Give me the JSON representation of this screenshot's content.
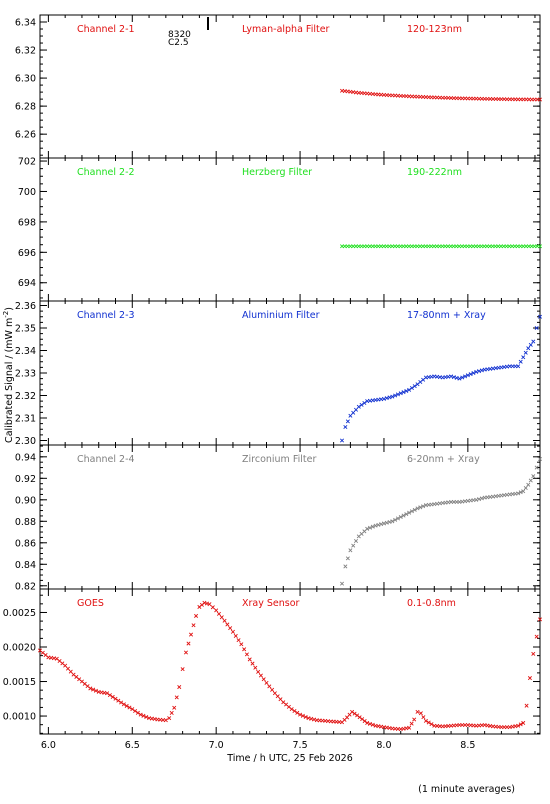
{
  "page": {
    "ylabel": "Calibrated Signal / (mW m",
    "ylabel_sup": "-2",
    "ylabel_end": ")",
    "xlabel": "Time / h UTC, 25 Feb 2026",
    "footnote": "(1 minute averages)",
    "xticks": [
      "6.0",
      "6.5",
      "7.0",
      "7.5",
      "8.0",
      "8.5"
    ],
    "marker": {
      "line1": "8320",
      "line2": "C2.5"
    }
  },
  "chart_data": [
    {
      "type": "scatter",
      "channel": "Channel 2-1",
      "filter": "Lyman-alpha Filter",
      "band": "120-123nm",
      "color": "#e01010",
      "xlim": [
        5.95,
        8.93
      ],
      "ylim": [
        6.243,
        6.345
      ],
      "ytick_values": [
        6.26,
        6.28,
        6.3,
        6.32,
        6.34
      ],
      "yticks": [
        "6.26",
        "6.28",
        "6.30",
        "6.32",
        "6.34"
      ],
      "x": [
        7.75,
        7.85,
        8.0,
        8.15,
        8.3,
        8.45,
        8.6,
        8.75,
        8.93
      ],
      "y": [
        6.291,
        6.2895,
        6.288,
        6.287,
        6.2862,
        6.2856,
        6.2852,
        6.2849,
        6.2847
      ]
    },
    {
      "type": "scatter",
      "channel": "Channel 2-2",
      "filter": "Herzberg Filter",
      "band": "190-222nm",
      "color": "#20e020",
      "xlim": [
        5.95,
        8.93
      ],
      "ylim": [
        692.8,
        702.2
      ],
      "ytick_values": [
        694,
        696,
        698,
        700,
        702
      ],
      "yticks": [
        "694",
        "696",
        "698",
        "700",
        "702"
      ],
      "x": [
        7.75,
        8.93
      ],
      "y": [
        696.4,
        696.4
      ]
    },
    {
      "type": "scatter",
      "channel": "Channel 2-3",
      "filter": "Aluminium Filter",
      "band": "17-80nm + Xray",
      "color": "#1030d0",
      "xlim": [
        5.95,
        8.93
      ],
      "ylim": [
        2.298,
        2.362
      ],
      "ytick_values": [
        2.3,
        2.31,
        2.32,
        2.33,
        2.34,
        2.35,
        2.36
      ],
      "yticks": [
        "2.30",
        "2.31",
        "2.32",
        "2.33",
        "2.34",
        "2.35",
        "2.36"
      ],
      "x": [
        7.75,
        7.77,
        7.8,
        7.85,
        7.9,
        7.95,
        8.0,
        8.05,
        8.1,
        8.15,
        8.2,
        8.25,
        8.3,
        8.35,
        8.4,
        8.45,
        8.5,
        8.55,
        8.6,
        8.65,
        8.7,
        8.75,
        8.8,
        8.83,
        8.86,
        8.89,
        8.91,
        8.93
      ],
      "y": [
        2.3,
        2.306,
        2.311,
        2.315,
        2.3175,
        2.318,
        2.3185,
        2.3195,
        2.321,
        2.3225,
        2.325,
        2.328,
        2.3285,
        2.328,
        2.3285,
        2.3275,
        2.329,
        2.3305,
        2.3315,
        2.332,
        2.3325,
        2.333,
        2.333,
        2.337,
        2.341,
        2.344,
        2.35,
        2.355
      ]
    },
    {
      "type": "scatter",
      "channel": "Channel 2-4",
      "filter": "Zirconium Filter",
      "band": "6-20nm + Xray",
      "color": "#808080",
      "xlim": [
        5.95,
        8.93
      ],
      "ylim": [
        0.817,
        0.951
      ],
      "ytick_values": [
        0.82,
        0.84,
        0.86,
        0.88,
        0.9,
        0.92,
        0.94
      ],
      "yticks": [
        "0.82",
        "0.84",
        "0.86",
        "0.88",
        "0.90",
        "0.92",
        "0.94"
      ],
      "x": [
        7.75,
        7.77,
        7.8,
        7.85,
        7.9,
        7.95,
        8.0,
        8.05,
        8.1,
        8.15,
        8.2,
        8.25,
        8.3,
        8.35,
        8.4,
        8.45,
        8.5,
        8.55,
        8.6,
        8.65,
        8.7,
        8.75,
        8.8,
        8.83,
        8.86,
        8.89,
        8.91,
        8.93
      ],
      "y": [
        0.822,
        0.838,
        0.853,
        0.866,
        0.873,
        0.876,
        0.878,
        0.88,
        0.884,
        0.888,
        0.892,
        0.895,
        0.896,
        0.897,
        0.898,
        0.898,
        0.899,
        0.9,
        0.902,
        0.903,
        0.904,
        0.905,
        0.906,
        0.908,
        0.914,
        0.922,
        0.93,
        0.938
      ]
    },
    {
      "type": "scatter",
      "channel": "GOES",
      "filter": "Xray Sensor",
      "band": "0.1-0.8nm",
      "color": "#e01010",
      "xlim": [
        5.95,
        8.93
      ],
      "ylim": [
        0.00074,
        0.00284
      ],
      "ytick_values": [
        0.001,
        0.0015,
        0.002,
        0.0025
      ],
      "yticks": [
        "0.0010",
        "0.0015",
        "0.0020",
        "0.0025"
      ],
      "x": [
        5.95,
        6.0,
        6.05,
        6.1,
        6.15,
        6.2,
        6.25,
        6.3,
        6.35,
        6.4,
        6.45,
        6.5,
        6.55,
        6.6,
        6.65,
        6.7,
        6.72,
        6.75,
        6.78,
        6.8,
        6.82,
        6.85,
        6.88,
        6.9,
        6.93,
        6.96,
        7.0,
        7.05,
        7.1,
        7.15,
        7.2,
        7.25,
        7.3,
        7.35,
        7.4,
        7.45,
        7.5,
        7.55,
        7.6,
        7.65,
        7.7,
        7.75,
        7.78,
        7.81,
        7.84,
        7.9,
        7.95,
        8.0,
        8.05,
        8.1,
        8.15,
        8.18,
        8.2,
        8.22,
        8.25,
        8.3,
        8.35,
        8.4,
        8.45,
        8.5,
        8.55,
        8.6,
        8.65,
        8.7,
        8.75,
        8.8,
        8.83,
        8.85,
        8.87,
        8.89,
        8.91,
        8.93
      ],
      "y": [
        0.00195,
        0.00185,
        0.00183,
        0.00173,
        0.0016,
        0.0015,
        0.0014,
        0.00135,
        0.00133,
        0.00125,
        0.00117,
        0.0011,
        0.00102,
        0.00097,
        0.00095,
        0.00094,
        0.00097,
        0.00112,
        0.00142,
        0.00168,
        0.00192,
        0.00218,
        0.00245,
        0.00258,
        0.00264,
        0.00262,
        0.00253,
        0.00238,
        0.00222,
        0.00204,
        0.00182,
        0.00164,
        0.00148,
        0.00133,
        0.0012,
        0.0011,
        0.00102,
        0.00097,
        0.00094,
        0.00093,
        0.00092,
        0.00091,
        0.00098,
        0.00106,
        0.00101,
        0.0009,
        0.00086,
        0.00084,
        0.00082,
        0.00081,
        0.00083,
        0.00095,
        0.00106,
        0.00104,
        0.00093,
        0.00086,
        0.00085,
        0.00086,
        0.00087,
        0.00087,
        0.00086,
        0.00087,
        0.00085,
        0.00084,
        0.00084,
        0.00086,
        0.0009,
        0.00115,
        0.00155,
        0.0019,
        0.00215,
        0.0024
      ]
    }
  ]
}
